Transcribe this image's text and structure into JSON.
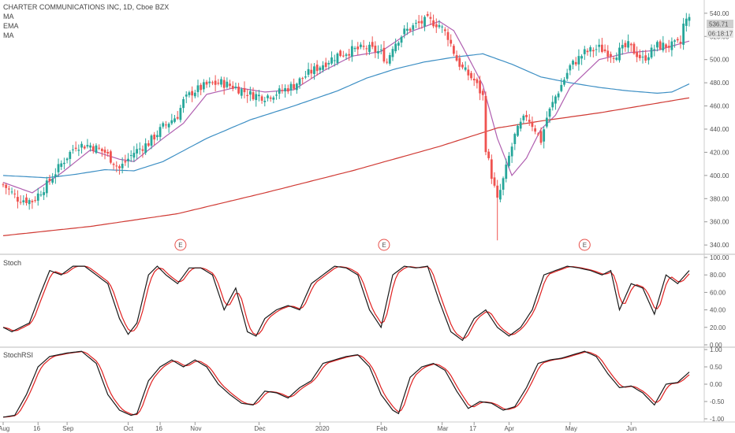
{
  "header": {
    "title": "CHARTER COMMUNICATIONS INC, 1D, Cboe BZX",
    "indicators": [
      "MA",
      "EMA",
      "MA"
    ]
  },
  "price_tag": {
    "price": "536.71",
    "countdown": "06:18:17"
  },
  "panes": {
    "stoch_label": "Stoch",
    "stochrsi_label": "StochRSI"
  },
  "colors": {
    "up": "#26a69a",
    "down": "#ef5350",
    "ma_fast": "#b05fb0",
    "ema": "#3d8fc4",
    "ma_slow": "#d03a34",
    "stoch_k": "#1a1a1a",
    "stoch_d": "#e02020",
    "earnings": "#e8504a"
  },
  "chart_data": [
    {
      "type": "candlestick",
      "title": "CHARTER COMMUNICATIONS INC, 1D, Cboe BZX",
      "y_ticks": [
        340,
        360,
        380,
        400,
        420,
        440,
        460,
        480,
        500,
        520,
        540
      ],
      "ylim": [
        334,
        546
      ],
      "x_ticks": [
        "Aug",
        "16",
        "Sep",
        "Oct",
        "16",
        "Nov",
        "Dec",
        "2020",
        "Feb",
        "Mar",
        "17",
        "Apr",
        "May",
        "Jun"
      ],
      "earnings_markers": [
        "E",
        "E",
        "E"
      ],
      "last_price": 536.71,
      "close_anchors": [
        [
          0,
          392
        ],
        [
          5,
          380
        ],
        [
          10,
          378
        ],
        [
          15,
          392
        ],
        [
          20,
          410
        ],
        [
          25,
          426
        ],
        [
          30,
          426
        ],
        [
          35,
          420
        ],
        [
          40,
          406
        ],
        [
          45,
          420
        ],
        [
          50,
          428
        ],
        [
          55,
          442
        ],
        [
          60,
          452
        ],
        [
          62,
          464
        ],
        [
          65,
          472
        ],
        [
          70,
          478
        ],
        [
          75,
          480
        ],
        [
          80,
          476
        ],
        [
          85,
          470
        ],
        [
          90,
          468
        ],
        [
          95,
          472
        ],
        [
          100,
          478
        ],
        [
          105,
          488
        ],
        [
          110,
          496
        ],
        [
          115,
          504
        ],
        [
          120,
          508
        ],
        [
          125,
          510
        ],
        [
          130,
          506
        ],
        [
          132,
          498
        ],
        [
          134,
          512
        ],
        [
          138,
          524
        ],
        [
          142,
          530
        ],
        [
          146,
          534
        ],
        [
          150,
          530
        ],
        [
          153,
          520
        ],
        [
          156,
          500
        ],
        [
          158,
          492
        ],
        [
          162,
          482
        ],
        [
          165,
          468
        ],
        [
          166,
          424
        ],
        [
          168,
          400
        ],
        [
          170,
          378
        ],
        [
          172,
          396
        ],
        [
          174,
          416
        ],
        [
          176,
          434
        ],
        [
          178,
          444
        ],
        [
          180,
          452
        ],
        [
          183,
          440
        ],
        [
          185,
          430
        ],
        [
          187,
          450
        ],
        [
          190,
          468
        ],
        [
          192,
          478
        ],
        [
          195,
          494
        ],
        [
          200,
          506
        ],
        [
          205,
          510
        ],
        [
          210,
          504
        ],
        [
          215,
          512
        ],
        [
          220,
          500
        ],
        [
          225,
          512
        ],
        [
          230,
          512
        ],
        [
          233,
          514
        ],
        [
          234,
          530
        ],
        [
          236,
          537
        ]
      ],
      "series": [
        {
          "name": "MA",
          "anchors": [
            [
              0,
              394
            ],
            [
              10,
              385
            ],
            [
              20,
              402
            ],
            [
              30,
              422
            ],
            [
              40,
              414
            ],
            [
              45,
              412
            ],
            [
              55,
              432
            ],
            [
              62,
              445
            ],
            [
              70,
              470
            ],
            [
              80,
              476
            ],
            [
              90,
              472
            ],
            [
              100,
              474
            ],
            [
              110,
              490
            ],
            [
              120,
              503
            ],
            [
              130,
              507
            ],
            [
              140,
              524
            ],
            [
              150,
              533
            ],
            [
              155,
              525
            ],
            [
              160,
              502
            ],
            [
              165,
              478
            ],
            [
              170,
              432
            ],
            [
              175,
              400
            ],
            [
              180,
              415
            ],
            [
              185,
              440
            ],
            [
              190,
              452
            ],
            [
              195,
              476
            ],
            [
              205,
              500
            ],
            [
              215,
              506
            ],
            [
              225,
              508
            ],
            [
              236,
              516
            ]
          ]
        },
        {
          "name": "EMA",
          "anchors": [
            [
              0,
              400
            ],
            [
              15,
              398
            ],
            [
              25,
              401
            ],
            [
              35,
              405
            ],
            [
              45,
              404
            ],
            [
              55,
              412
            ],
            [
              70,
              432
            ],
            [
              85,
              448
            ],
            [
              100,
              460
            ],
            [
              115,
              473
            ],
            [
              125,
              484
            ],
            [
              135,
              492
            ],
            [
              145,
              498
            ],
            [
              155,
              502
            ],
            [
              165,
              505
            ],
            [
              175,
              496
            ],
            [
              185,
              485
            ],
            [
              195,
              480
            ],
            [
              205,
              476
            ],
            [
              215,
              473
            ],
            [
              225,
              471
            ],
            [
              230,
              472
            ],
            [
              236,
              479
            ]
          ]
        },
        {
          "name": "MA",
          "anchors": [
            [
              0,
              348
            ],
            [
              30,
              356
            ],
            [
              60,
              367
            ],
            [
              90,
              385
            ],
            [
              120,
              404
            ],
            [
              150,
              425
            ],
            [
              170,
              441
            ],
            [
              185,
              447
            ],
            [
              205,
              454
            ],
            [
              236,
              467
            ]
          ]
        }
      ]
    },
    {
      "type": "line",
      "title": "Stoch",
      "ylim": [
        0,
        100
      ],
      "y_ticks": [
        "0.00",
        "20.00",
        "40.00",
        "60.00",
        "80.00",
        "100.00"
      ],
      "k_anchors": [
        [
          0,
          20
        ],
        [
          3,
          15
        ],
        [
          6,
          20
        ],
        [
          9,
          25
        ],
        [
          13,
          60
        ],
        [
          16,
          85
        ],
        [
          20,
          80
        ],
        [
          24,
          90
        ],
        [
          28,
          90
        ],
        [
          32,
          80
        ],
        [
          36,
          70
        ],
        [
          40,
          30
        ],
        [
          43,
          12
        ],
        [
          46,
          25
        ],
        [
          50,
          80
        ],
        [
          53,
          90
        ],
        [
          56,
          80
        ],
        [
          60,
          70
        ],
        [
          64,
          88
        ],
        [
          68,
          88
        ],
        [
          72,
          80
        ],
        [
          76,
          40
        ],
        [
          80,
          65
        ],
        [
          84,
          15
        ],
        [
          87,
          10
        ],
        [
          90,
          30
        ],
        [
          94,
          40
        ],
        [
          98,
          45
        ],
        [
          102,
          40
        ],
        [
          106,
          70
        ],
        [
          110,
          80
        ],
        [
          114,
          90
        ],
        [
          118,
          88
        ],
        [
          122,
          80
        ],
        [
          126,
          40
        ],
        [
          130,
          20
        ],
        [
          134,
          80
        ],
        [
          138,
          90
        ],
        [
          142,
          88
        ],
        [
          146,
          90
        ],
        [
          150,
          50
        ],
        [
          154,
          15
        ],
        [
          158,
          5
        ],
        [
          162,
          30
        ],
        [
          166,
          40
        ],
        [
          170,
          20
        ],
        [
          174,
          10
        ],
        [
          178,
          20
        ],
        [
          182,
          40
        ],
        [
          186,
          80
        ],
        [
          190,
          85
        ],
        [
          194,
          90
        ],
        [
          198,
          88
        ],
        [
          202,
          85
        ],
        [
          206,
          80
        ],
        [
          209,
          85
        ],
        [
          212,
          40
        ],
        [
          216,
          70
        ],
        [
          220,
          65
        ],
        [
          224,
          35
        ],
        [
          228,
          80
        ],
        [
          232,
          70
        ],
        [
          236,
          85
        ]
      ]
    },
    {
      "type": "line",
      "title": "StochRSI",
      "ylim": [
        -1,
        1
      ],
      "y_ticks": [
        "-1.00",
        "-0.50",
        "0.00",
        "0.50",
        "1.00"
      ],
      "k_anchors": [
        [
          0,
          -0.95
        ],
        [
          4,
          -0.9
        ],
        [
          8,
          -0.3
        ],
        [
          12,
          0.5
        ],
        [
          16,
          0.8
        ],
        [
          22,
          0.9
        ],
        [
          27,
          0.95
        ],
        [
          32,
          0.6
        ],
        [
          36,
          -0.3
        ],
        [
          40,
          -0.75
        ],
        [
          44,
          -0.9
        ],
        [
          46,
          -0.85
        ],
        [
          50,
          0.1
        ],
        [
          54,
          0.5
        ],
        [
          58,
          0.7
        ],
        [
          62,
          0.5
        ],
        [
          66,
          0.7
        ],
        [
          70,
          0.5
        ],
        [
          74,
          0
        ],
        [
          78,
          -0.3
        ],
        [
          82,
          -0.55
        ],
        [
          86,
          -0.6
        ],
        [
          90,
          -0.2
        ],
        [
          94,
          -0.25
        ],
        [
          98,
          -0.4
        ],
        [
          102,
          -0.1
        ],
        [
          106,
          0.1
        ],
        [
          110,
          0.6
        ],
        [
          114,
          0.7
        ],
        [
          118,
          0.8
        ],
        [
          122,
          0.85
        ],
        [
          126,
          0.5
        ],
        [
          130,
          -0.3
        ],
        [
          134,
          -0.75
        ],
        [
          136,
          -0.85
        ],
        [
          140,
          0.2
        ],
        [
          144,
          0.5
        ],
        [
          148,
          0.6
        ],
        [
          152,
          0.4
        ],
        [
          156,
          -0.2
        ],
        [
          160,
          -0.7
        ],
        [
          164,
          -0.5
        ],
        [
          168,
          -0.55
        ],
        [
          172,
          -0.75
        ],
        [
          176,
          -0.65
        ],
        [
          180,
          -0.1
        ],
        [
          184,
          0.6
        ],
        [
          188,
          0.7
        ],
        [
          192,
          0.75
        ],
        [
          196,
          0.85
        ],
        [
          200,
          0.95
        ],
        [
          204,
          0.8
        ],
        [
          208,
          0.3
        ],
        [
          212,
          -0.1
        ],
        [
          216,
          -0.05
        ],
        [
          220,
          -0.25
        ],
        [
          224,
          -0.6
        ],
        [
          228,
          0
        ],
        [
          232,
          0.05
        ],
        [
          236,
          0.35
        ]
      ]
    }
  ]
}
